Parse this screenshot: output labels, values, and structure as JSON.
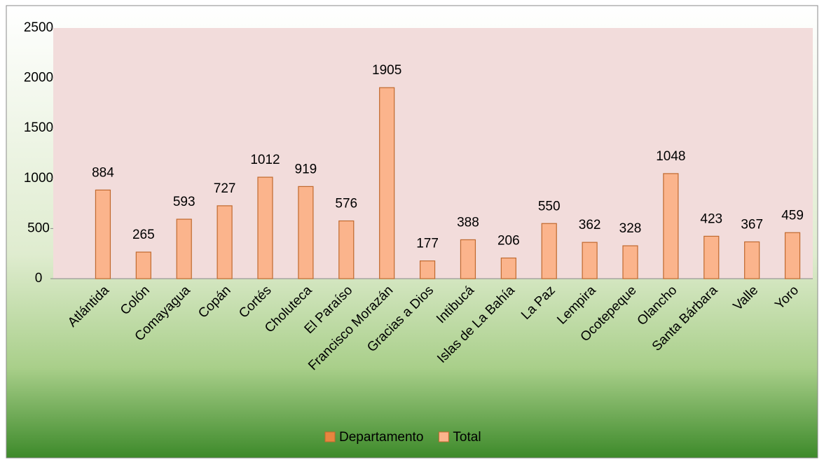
{
  "chart_data": {
    "type": "bar",
    "categories": [
      "Atlántida",
      "Colón",
      "Comayagua",
      "Copán",
      "Cortés",
      "Choluteca",
      "El Paraíso",
      "Francisco Morazán",
      "Gracias a Dios",
      "Intibucá",
      "Islas de La Bahía",
      "La Paz",
      "Lempira",
      "Ocotepeque",
      "Olancho",
      "Santa Bárbara",
      "Valle",
      "Yoro"
    ],
    "series": [
      {
        "name": "Departamento",
        "color": "#e8853f",
        "values": [
          null,
          null,
          null,
          null,
          null,
          null,
          null,
          null,
          null,
          null,
          null,
          null,
          null,
          null,
          null,
          null,
          null,
          null
        ]
      },
      {
        "name": "Total",
        "color": "#fbb48c",
        "values": [
          884,
          265,
          593,
          727,
          1012,
          919,
          576,
          1905,
          177,
          388,
          206,
          550,
          362,
          328,
          1048,
          423,
          367,
          459
        ]
      }
    ],
    "ylim": [
      0,
      2500
    ],
    "yticks": [
      0,
      500,
      1000,
      1500,
      2000,
      2500
    ],
    "legend": "bottom"
  }
}
